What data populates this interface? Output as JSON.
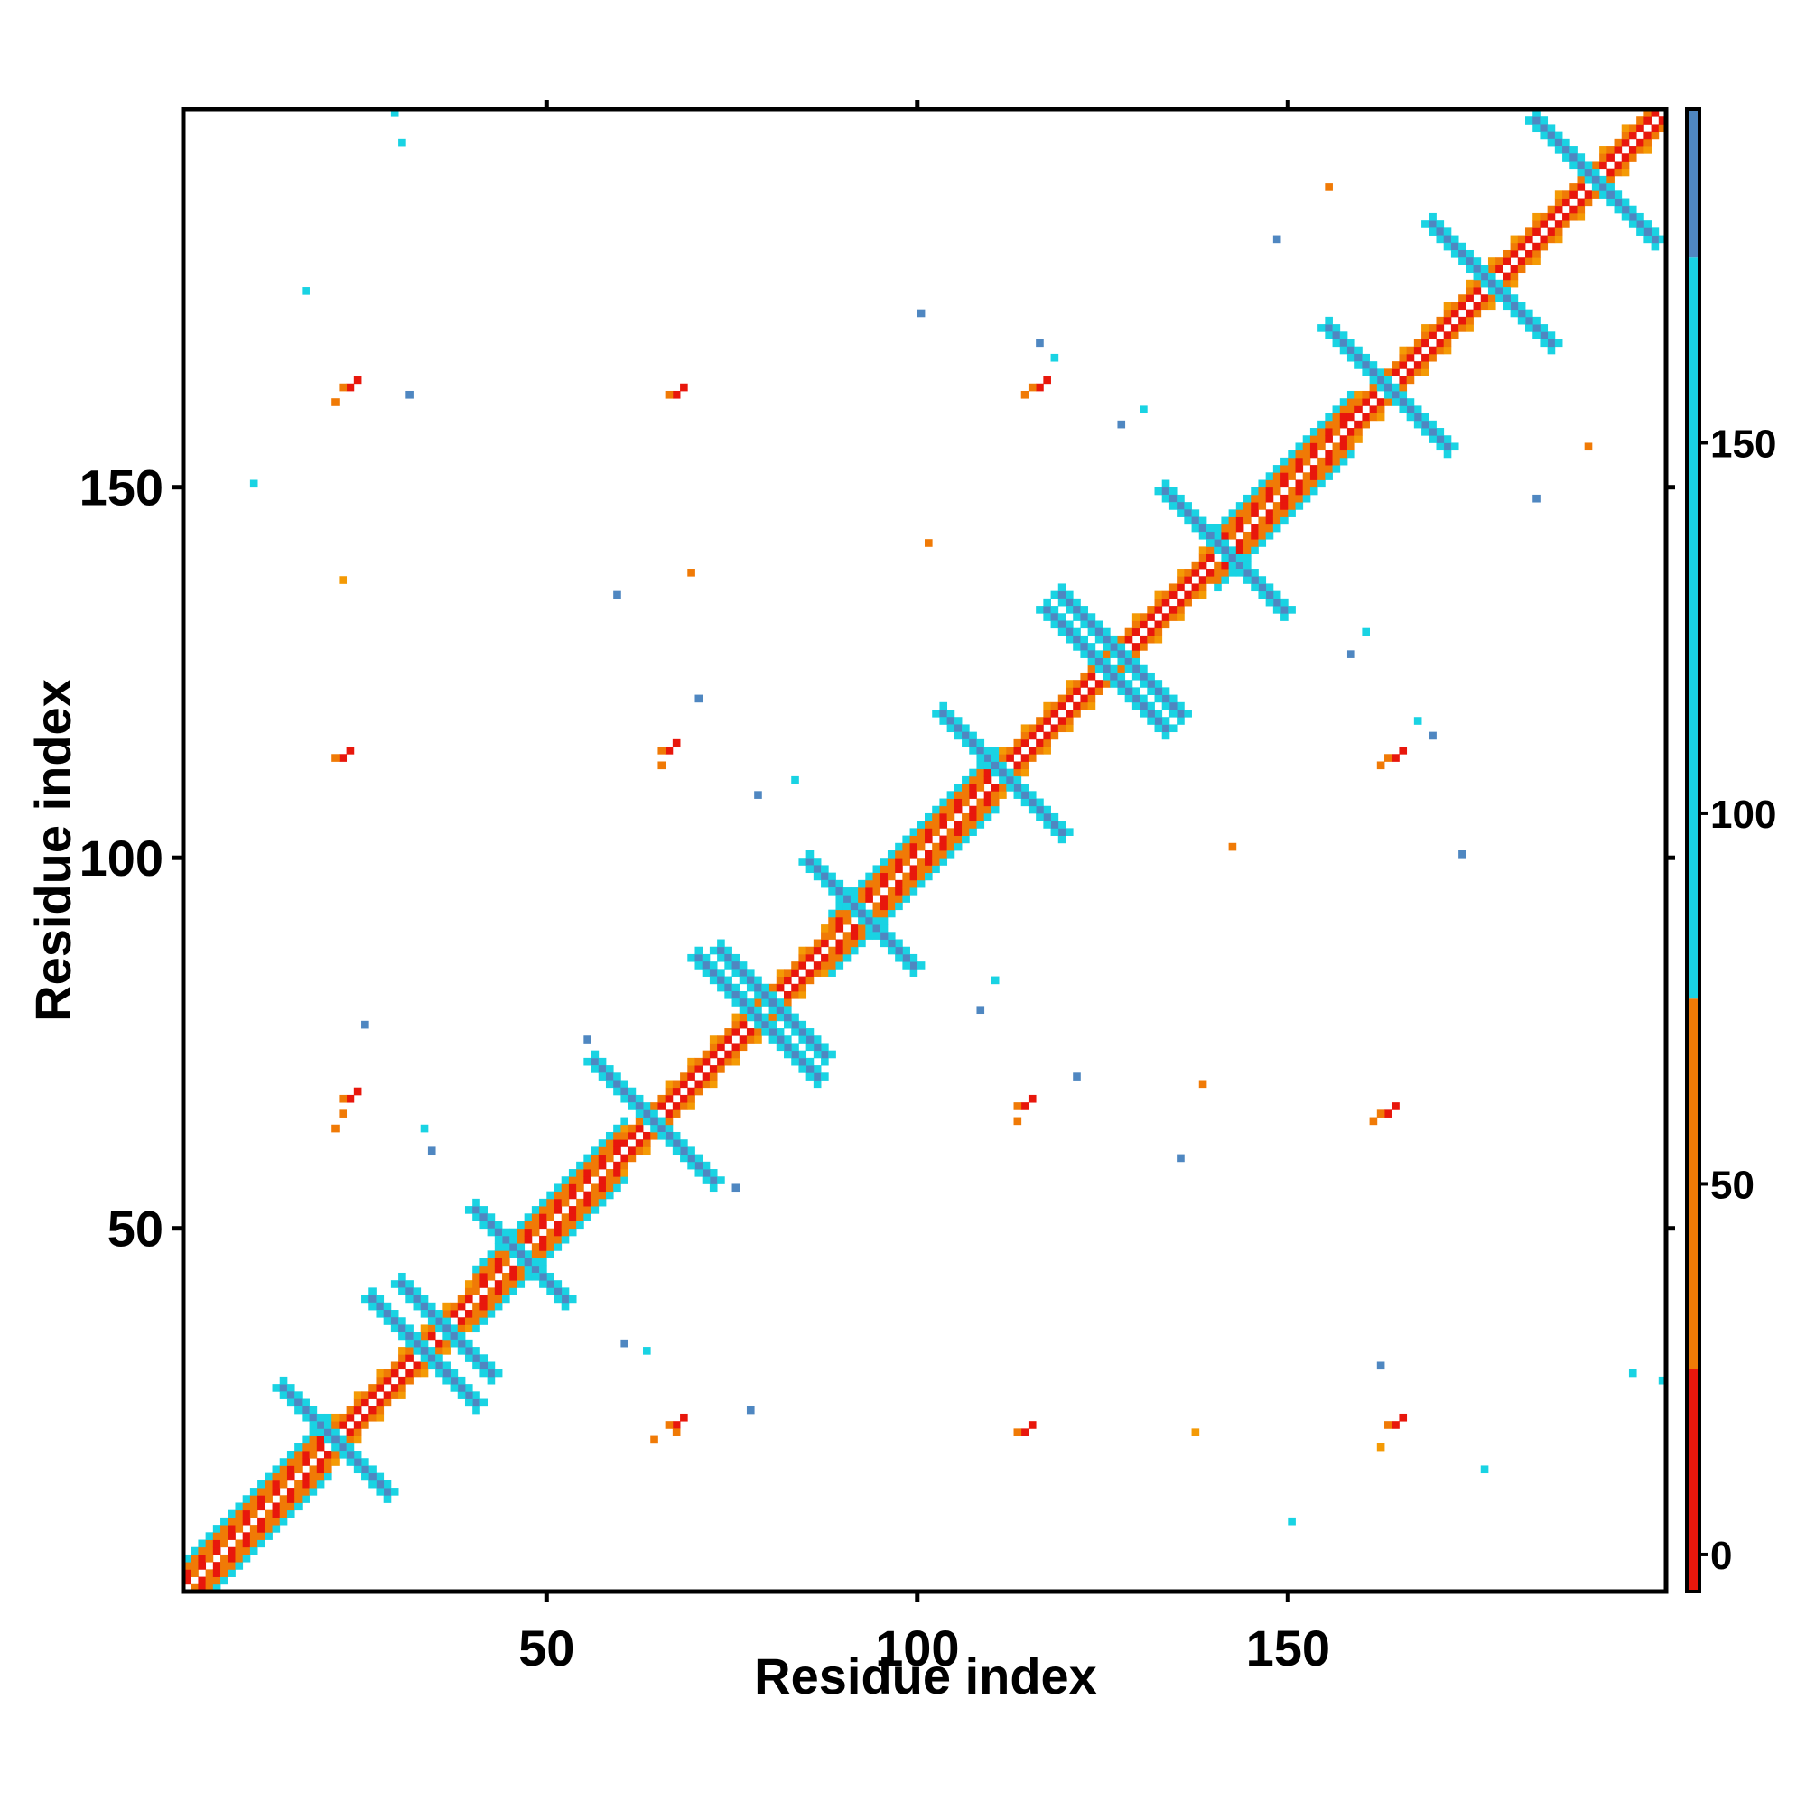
{
  "chart_data": {
    "type": "heatmap",
    "title": "",
    "xlabel": "Residue index",
    "ylabel": "Residue index",
    "xlim": [
      1,
      200
    ],
    "ylim": [
      1,
      200
    ],
    "x_ticks": [
      50,
      100,
      150
    ],
    "y_ticks": [
      50,
      100,
      150
    ],
    "grid": false,
    "colorbar": {
      "position": "right",
      "ticks": [
        0,
        50,
        100,
        150
      ],
      "range": [
        -5,
        195
      ],
      "bands": [
        {
          "from": -5,
          "to": 25,
          "color": "#e8170c"
        },
        {
          "from": 25,
          "to": 75,
          "color": "#f07a06"
        },
        {
          "from": 75,
          "to": 175,
          "color": "#19d3e3"
        },
        {
          "from": 175,
          "to": 195,
          "color": "#4f87c1"
        }
      ]
    },
    "cell_colors": {
      "red": "#e8170c",
      "orange": "#f07a06",
      "amber": "#f49a05",
      "cyan": "#19d3e3",
      "blue": "#4f87c1"
    },
    "diagonal_segments": [
      {
        "start": 1,
        "end": 20,
        "type": "helix"
      },
      {
        "start": 20,
        "end": 40,
        "type": "strand"
      },
      {
        "start": 40,
        "end": 60,
        "type": "helix"
      },
      {
        "start": 60,
        "end": 88,
        "type": "strand"
      },
      {
        "start": 88,
        "end": 110,
        "type": "helix"
      },
      {
        "start": 110,
        "end": 140,
        "type": "strand"
      },
      {
        "start": 140,
        "end": 158,
        "type": "helix"
      },
      {
        "start": 158,
        "end": 200,
        "type": "strand"
      }
    ],
    "antidiagonal_bands": [
      {
        "cx": 27,
        "cy": 27,
        "half_length": 7,
        "offset": 6
      },
      {
        "cx": 41,
        "cy": 41,
        "half_length": 6,
        "offset": 5
      },
      {
        "cx": 71,
        "cy": 71,
        "half_length": 8,
        "offset": 7
      },
      {
        "cx": 86,
        "cy": 86,
        "half_length": 7,
        "offset": 6
      },
      {
        "cx": 118,
        "cy": 118,
        "half_length": 8,
        "offset": 7
      },
      {
        "cx": 134,
        "cy": 134,
        "half_length": 8,
        "offset": 7
      },
      {
        "cx": 170,
        "cy": 170,
        "half_length": 8,
        "offset": 7
      },
      {
        "cx": 184,
        "cy": 184,
        "half_length": 8,
        "offset": 7
      }
    ],
    "off_diagonal_contacts": [
      {
        "x": 67,
        "y": 23,
        "color": "red"
      },
      {
        "x": 67,
        "y": 22,
        "color": "orange"
      },
      {
        "x": 64,
        "y": 21,
        "color": "orange"
      },
      {
        "x": 23,
        "y": 67,
        "color": "red"
      },
      {
        "x": 22,
        "y": 65,
        "color": "orange"
      },
      {
        "x": 21,
        "y": 63,
        "color": "orange"
      },
      {
        "x": 114,
        "y": 66,
        "color": "red"
      },
      {
        "x": 113,
        "y": 64,
        "color": "orange"
      },
      {
        "x": 66,
        "y": 114,
        "color": "red"
      },
      {
        "x": 65,
        "y": 112,
        "color": "orange"
      },
      {
        "x": 116,
        "y": 163,
        "color": "red"
      },
      {
        "x": 114,
        "y": 162,
        "color": "orange"
      },
      {
        "x": 23,
        "y": 163,
        "color": "red"
      },
      {
        "x": 21,
        "y": 161,
        "color": "orange"
      },
      {
        "x": 164,
        "y": 113,
        "color": "red"
      },
      {
        "x": 162,
        "y": 112,
        "color": "orange"
      },
      {
        "x": 164,
        "y": 23,
        "color": "red"
      },
      {
        "x": 162,
        "y": 20,
        "color": "amber"
      },
      {
        "x": 163,
        "y": 65,
        "color": "red"
      },
      {
        "x": 161,
        "y": 64,
        "color": "orange"
      },
      {
        "x": 114,
        "y": 22,
        "color": "red"
      },
      {
        "x": 22,
        "y": 113,
        "color": "red"
      },
      {
        "x": 67,
        "y": 162,
        "color": "red"
      },
      {
        "x": 83,
        "y": 110,
        "color": "cyan"
      },
      {
        "x": 78,
        "y": 108,
        "color": "blue"
      },
      {
        "x": 110,
        "y": 83,
        "color": "cyan"
      },
      {
        "x": 108,
        "y": 79,
        "color": "blue"
      },
      {
        "x": 63,
        "y": 33,
        "color": "cyan"
      },
      {
        "x": 60,
        "y": 34,
        "color": "blue"
      },
      {
        "x": 33,
        "y": 63,
        "color": "cyan"
      },
      {
        "x": 34,
        "y": 60,
        "color": "blue"
      },
      {
        "x": 160,
        "y": 130,
        "color": "cyan"
      },
      {
        "x": 158,
        "y": 127,
        "color": "blue"
      },
      {
        "x": 130,
        "y": 160,
        "color": "cyan"
      },
      {
        "x": 127,
        "y": 158,
        "color": "blue"
      },
      {
        "x": 167,
        "y": 118,
        "color": "cyan"
      },
      {
        "x": 169,
        "y": 116,
        "color": "blue"
      },
      {
        "x": 118,
        "y": 167,
        "color": "cyan"
      },
      {
        "x": 116,
        "y": 169,
        "color": "blue"
      },
      {
        "x": 75,
        "y": 55,
        "color": "blue"
      },
      {
        "x": 55,
        "y": 75,
        "color": "blue"
      },
      {
        "x": 176,
        "y": 17,
        "color": "cyan"
      },
      {
        "x": 17,
        "y": 176,
        "color": "cyan"
      },
      {
        "x": 155,
        "y": 190,
        "color": "orange"
      },
      {
        "x": 190,
        "y": 155,
        "color": "orange"
      },
      {
        "x": 30,
        "y": 196,
        "color": "cyan"
      },
      {
        "x": 196,
        "y": 30,
        "color": "cyan"
      },
      {
        "x": 101,
        "y": 142,
        "color": "orange"
      },
      {
        "x": 142,
        "y": 101,
        "color": "orange"
      },
      {
        "x": 137,
        "y": 22,
        "color": "amber"
      },
      {
        "x": 22,
        "y": 137,
        "color": "amber"
      },
      {
        "x": 138,
        "y": 69,
        "color": "orange"
      },
      {
        "x": 69,
        "y": 138,
        "color": "orange"
      },
      {
        "x": 121,
        "y": 70,
        "color": "blue"
      },
      {
        "x": 70,
        "y": 121,
        "color": "blue"
      },
      {
        "x": 148,
        "y": 183,
        "color": "blue"
      },
      {
        "x": 183,
        "y": 148,
        "color": "blue"
      },
      {
        "x": 31,
        "y": 162,
        "color": "blue"
      },
      {
        "x": 162,
        "y": 31,
        "color": "blue"
      },
      {
        "x": 25,
        "y": 77,
        "color": "blue"
      },
      {
        "x": 77,
        "y": 25,
        "color": "blue"
      },
      {
        "x": 100,
        "y": 173,
        "color": "blue"
      },
      {
        "x": 173,
        "y": 100,
        "color": "blue"
      },
      {
        "x": 59,
        "y": 135,
        "color": "blue"
      },
      {
        "x": 135,
        "y": 59,
        "color": "blue"
      },
      {
        "x": 150,
        "y": 10,
        "color": "cyan"
      },
      {
        "x": 10,
        "y": 150,
        "color": "cyan"
      },
      {
        "x": 200,
        "y": 29,
        "color": "cyan"
      },
      {
        "x": 29,
        "y": 200,
        "color": "cyan"
      }
    ]
  }
}
